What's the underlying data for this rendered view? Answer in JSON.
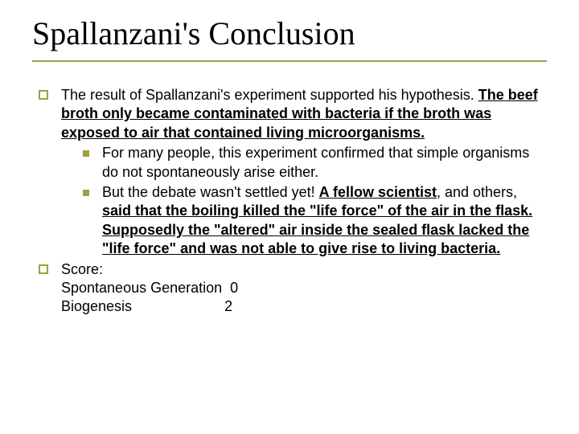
{
  "title": "Spallanzani's Conclusion",
  "colors": {
    "accent": "#a0a040",
    "text": "#000000",
    "background": "#ffffff"
  },
  "typography": {
    "title_font": "Times New Roman",
    "title_size_pt": 36,
    "body_font": "Verdana",
    "body_size_pt": 18
  },
  "p1": {
    "intro": "The result of Spallanzani's experiment supported his hypothesis.  ",
    "bold": "The beef broth only became contaminated with bacteria if the broth was exposed to air that contained living microorganisms."
  },
  "p1s1": "For many people, this experiment confirmed that simple organisms do not spontaneously arise either.",
  "p1s2": {
    "a": "But the debate wasn't settled yet!  ",
    "b": "A fellow scientist",
    "c": ", and others, ",
    "d": "said that the boiling killed the \"life force\" of the air in the flask.  Supposedly the \"altered\" air inside the sealed flask lacked the \"life force\" and was not able to give rise to living bacteria."
  },
  "score": {
    "label": "Score:",
    "line1": "Spontaneous Generation  0",
    "line2": "Biogenesis                       2"
  }
}
